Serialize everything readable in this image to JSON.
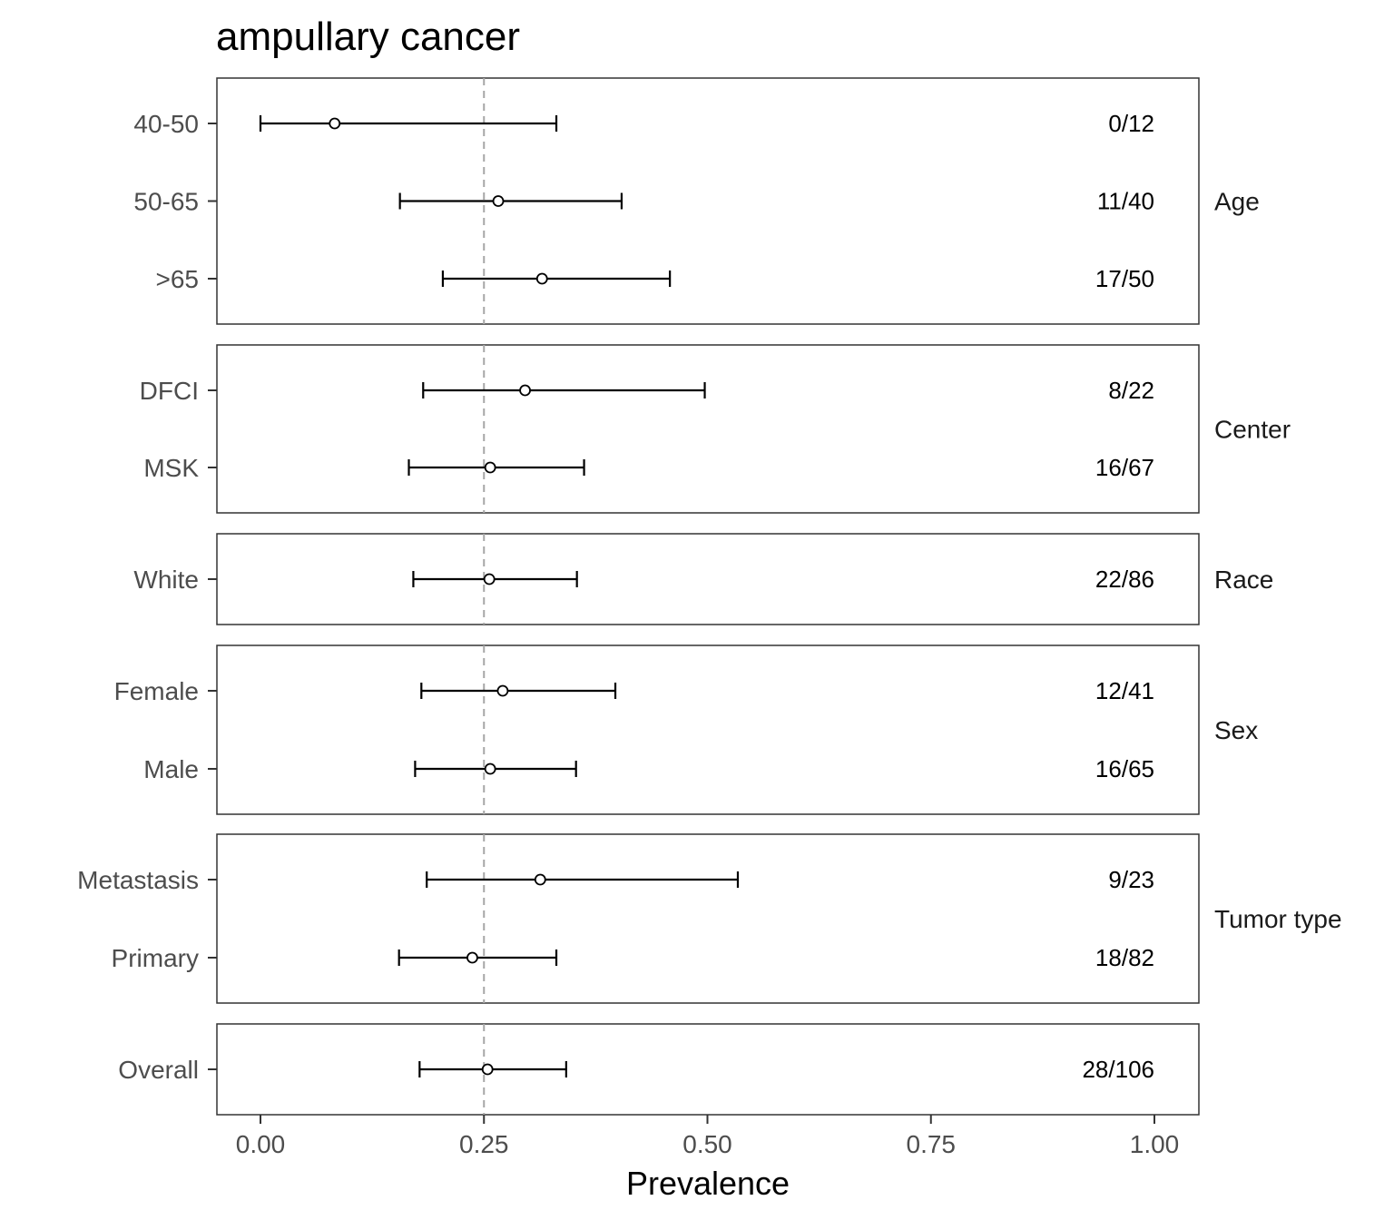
{
  "chart_data": {
    "type": "forest",
    "title": "ampullary cancer",
    "xlabel": "Prevalence",
    "ylabel": "",
    "xlim": [
      0,
      1
    ],
    "x_ticks": [
      0,
      0.25,
      0.5,
      0.75,
      1
    ],
    "x_tick_labels": [
      "0.00",
      "0.25",
      "0.50",
      "0.75",
      "1.00"
    ],
    "reference_line": 0.25,
    "reference_style": "dashed",
    "grid": false,
    "panels": [
      {
        "label": "Age",
        "rows": [
          {
            "label": "40-50",
            "estimate": 0.083,
            "lower": 0.0,
            "upper": 0.331,
            "count": "0/12"
          },
          {
            "label": "50-65",
            "estimate": 0.266,
            "lower": 0.156,
            "upper": 0.404,
            "count": "11/40"
          },
          {
            "label": ">65",
            "estimate": 0.315,
            "lower": 0.204,
            "upper": 0.458,
            "count": "17/50"
          }
        ]
      },
      {
        "label": "Center",
        "rows": [
          {
            "label": "DFCI",
            "estimate": 0.296,
            "lower": 0.182,
            "upper": 0.497,
            "count": "8/22"
          },
          {
            "label": "MSK",
            "estimate": 0.257,
            "lower": 0.166,
            "upper": 0.362,
            "count": "16/67"
          }
        ]
      },
      {
        "label": "Race",
        "rows": [
          {
            "label": "White",
            "estimate": 0.256,
            "lower": 0.171,
            "upper": 0.354,
            "count": "22/86"
          }
        ]
      },
      {
        "label": "Sex",
        "rows": [
          {
            "label": "Female",
            "estimate": 0.271,
            "lower": 0.18,
            "upper": 0.397,
            "count": "12/41"
          },
          {
            "label": "Male",
            "estimate": 0.257,
            "lower": 0.173,
            "upper": 0.353,
            "count": "16/65"
          }
        ]
      },
      {
        "label": "Tumor type",
        "rows": [
          {
            "label": "Metastasis",
            "estimate": 0.313,
            "lower": 0.186,
            "upper": 0.534,
            "count": "9/23"
          },
          {
            "label": "Primary",
            "estimate": 0.237,
            "lower": 0.155,
            "upper": 0.331,
            "count": "18/82"
          }
        ]
      },
      {
        "label": "",
        "rows": [
          {
            "label": "Overall",
            "estimate": 0.254,
            "lower": 0.178,
            "upper": 0.342,
            "count": "28/106"
          }
        ]
      }
    ]
  }
}
